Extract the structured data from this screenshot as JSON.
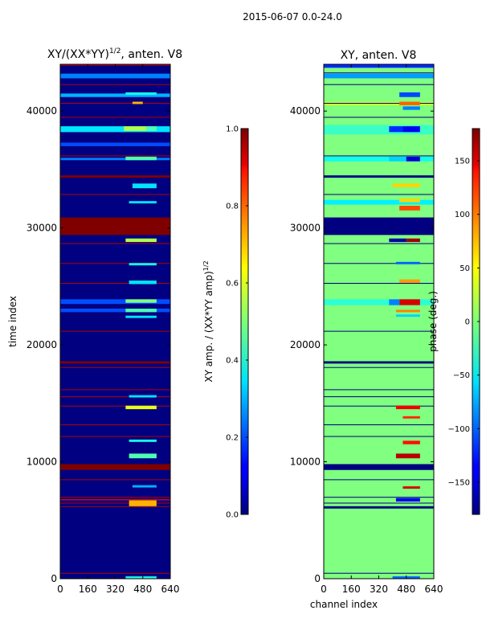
{
  "figure": {
    "suptitle": "2015-06-07 0.0-24.0"
  },
  "chart_data": [
    {
      "type": "heatmap",
      "title": "XY/(XX*YY)^{1/2}, anten. V8",
      "title_main": "XY/(XX*YY)",
      "title_exp": "1/2",
      "title_tail": ", anten. V8",
      "xlabel": "",
      "ylabel": "time index",
      "xlim": [
        0,
        640
      ],
      "ylim": [
        0,
        44000
      ],
      "xticks": [
        0,
        160,
        320,
        480,
        640
      ],
      "yticks": [
        0,
        10000,
        20000,
        30000,
        40000
      ],
      "base_value": 0.0,
      "bands": [
        {
          "y0": 29400,
          "y1": 30900,
          "value": 1.0
        },
        {
          "y0": 9300,
          "y1": 9800,
          "value": 1.0
        },
        {
          "y0": 18400,
          "y1": 18600,
          "value": 1.0
        },
        {
          "y0": 34300,
          "y1": 34500,
          "value": 1.0
        },
        {
          "y0": 6700,
          "y1": 6800,
          "value": 0.9
        },
        {
          "y0": 43900,
          "y1": 44000,
          "value": 0.9
        }
      ],
      "lines_y": [
        500,
        6200,
        6500,
        7000,
        8500,
        12200,
        13200,
        14800,
        15600,
        16200,
        18100,
        21200,
        25300,
        27000,
        28700,
        32900,
        36200,
        39500,
        40700,
        42300
      ],
      "row_values": [
        {
          "y0": 42800,
          "y1": 43200,
          "value": 0.25
        },
        {
          "y0": 41200,
          "y1": 41500,
          "value": 0.3
        },
        {
          "y0": 38200,
          "y1": 38700,
          "value": 0.35
        },
        {
          "y0": 37000,
          "y1": 37300,
          "value": 0.2
        },
        {
          "y0": 35800,
          "y1": 36000,
          "value": 0.25
        },
        {
          "y0": 23500,
          "y1": 23900,
          "value": 0.2
        },
        {
          "y0": 22800,
          "y1": 23100,
          "value": 0.2
        }
      ],
      "blocks": [
        {
          "x0": 370,
          "x1": 500,
          "y0": 38300,
          "y1": 38700,
          "value": 0.55
        },
        {
          "x0": 500,
          "x1": 560,
          "y0": 38300,
          "y1": 38700,
          "value": 0.45
        },
        {
          "x0": 380,
          "x1": 560,
          "y0": 41400,
          "y1": 41600,
          "value": 0.4
        },
        {
          "x0": 420,
          "x1": 480,
          "y0": 40600,
          "y1": 40800,
          "value": 0.7
        },
        {
          "x0": 380,
          "x1": 560,
          "y0": 35800,
          "y1": 36100,
          "value": 0.45
        },
        {
          "x0": 420,
          "x1": 560,
          "y0": 33400,
          "y1": 33800,
          "value": 0.35
        },
        {
          "x0": 400,
          "x1": 560,
          "y0": 32100,
          "y1": 32300,
          "value": 0.35
        },
        {
          "x0": 380,
          "x1": 560,
          "y0": 28800,
          "y1": 29100,
          "value": 0.55
        },
        {
          "x0": 400,
          "x1": 560,
          "y0": 26800,
          "y1": 27000,
          "value": 0.4
        },
        {
          "x0": 400,
          "x1": 560,
          "y0": 25200,
          "y1": 25500,
          "value": 0.35
        },
        {
          "x0": 380,
          "x1": 560,
          "y0": 23600,
          "y1": 23900,
          "value": 0.5
        },
        {
          "x0": 380,
          "x1": 560,
          "y0": 22800,
          "y1": 23100,
          "value": 0.45
        },
        {
          "x0": 380,
          "x1": 560,
          "y0": 22300,
          "y1": 22500,
          "value": 0.35
        },
        {
          "x0": 380,
          "x1": 560,
          "y0": 14500,
          "y1": 14800,
          "value": 0.6
        },
        {
          "x0": 400,
          "x1": 560,
          "y0": 15500,
          "y1": 15700,
          "value": 0.35
        },
        {
          "x0": 400,
          "x1": 560,
          "y0": 11700,
          "y1": 11900,
          "value": 0.4
        },
        {
          "x0": 400,
          "x1": 560,
          "y0": 10300,
          "y1": 10700,
          "value": 0.45
        },
        {
          "x0": 400,
          "x1": 560,
          "y0": 6200,
          "y1": 6700,
          "value": 0.7
        },
        {
          "x0": 420,
          "x1": 560,
          "y0": 7800,
          "y1": 8000,
          "value": 0.3
        },
        {
          "x0": 380,
          "x1": 560,
          "y0": 0,
          "y1": 200,
          "value": 0.4
        }
      ],
      "colorbar": {
        "label_main": "XY amp. / (XX*YY amp)",
        "label_exp": "1/2",
        "label": "XY amp. / (XX*YY amp)^{1/2}",
        "vmin": 0.0,
        "vmax": 1.0,
        "ticks": [
          0.0,
          0.2,
          0.4,
          0.6,
          0.8,
          1.0
        ],
        "tick_labels": [
          "0.0",
          "0.2",
          "0.4",
          "0.6",
          "0.8",
          "1.0"
        ]
      }
    },
    {
      "type": "heatmap",
      "title": "XY, anten. V8",
      "xlabel": "channel index",
      "ylabel": "",
      "xlim": [
        0,
        640
      ],
      "ylim": [
        0,
        44000
      ],
      "xticks": [
        0,
        160,
        320,
        480,
        640
      ],
      "yticks": [
        0,
        10000,
        20000,
        30000,
        40000
      ],
      "base_value": 0,
      "bands": [
        {
          "y0": 29400,
          "y1": 30900,
          "value": -180
        },
        {
          "y0": 9300,
          "y1": 9800,
          "value": -180
        },
        {
          "y0": 18400,
          "y1": 18600,
          "value": -180
        },
        {
          "y0": 34300,
          "y1": 34500,
          "value": -180
        },
        {
          "y0": 6000,
          "y1": 6200,
          "value": -180
        },
        {
          "y0": 43700,
          "y1": 44000,
          "value": -120
        }
      ],
      "lines_y": [
        500,
        6500,
        7000,
        8500,
        12200,
        13200,
        14800,
        15600,
        16200,
        18100,
        21200,
        25300,
        27000,
        28700,
        32900,
        36200,
        39500,
        40700,
        42300,
        43300
      ],
      "row_values": [
        {
          "y0": 42800,
          "y1": 43200,
          "value": -80
        },
        {
          "y0": 38000,
          "y1": 38800,
          "value": -25
        },
        {
          "y0": 35700,
          "y1": 36100,
          "value": -40
        },
        {
          "y0": 32000,
          "y1": 32400,
          "value": -50
        },
        {
          "y0": 23400,
          "y1": 23900,
          "value": -30
        },
        {
          "y0": 40500,
          "y1": 40800,
          "value": 30
        }
      ],
      "blocks": [
        {
          "x0": 380,
          "x1": 460,
          "y0": 38200,
          "y1": 38700,
          "value": -120
        },
        {
          "x0": 460,
          "x1": 560,
          "y0": 38200,
          "y1": 38700,
          "value": -140
        },
        {
          "x0": 440,
          "x1": 560,
          "y0": 41200,
          "y1": 41600,
          "value": -110
        },
        {
          "x0": 440,
          "x1": 560,
          "y0": 40500,
          "y1": 40800,
          "value": 100
        },
        {
          "x0": 460,
          "x1": 560,
          "y0": 40100,
          "y1": 40400,
          "value": -90
        },
        {
          "x0": 380,
          "x1": 480,
          "y0": 35700,
          "y1": 36100,
          "value": -60
        },
        {
          "x0": 480,
          "x1": 560,
          "y0": 35700,
          "y1": 36100,
          "value": -150
        },
        {
          "x0": 400,
          "x1": 560,
          "y0": 33500,
          "y1": 33800,
          "value": 60
        },
        {
          "x0": 440,
          "x1": 560,
          "y0": 31500,
          "y1": 31900,
          "value": 110
        },
        {
          "x0": 440,
          "x1": 560,
          "y0": 32200,
          "y1": 32500,
          "value": 60
        },
        {
          "x0": 480,
          "x1": 560,
          "y0": 28800,
          "y1": 29100,
          "value": 170
        },
        {
          "x0": 380,
          "x1": 480,
          "y0": 28800,
          "y1": 29100,
          "value": -170
        },
        {
          "x0": 420,
          "x1": 560,
          "y0": 26900,
          "y1": 27100,
          "value": -100
        },
        {
          "x0": 440,
          "x1": 560,
          "y0": 25300,
          "y1": 25600,
          "value": 80
        },
        {
          "x0": 440,
          "x1": 560,
          "y0": 23400,
          "y1": 23900,
          "value": 150
        },
        {
          "x0": 380,
          "x1": 440,
          "y0": 23400,
          "y1": 23900,
          "value": -90
        },
        {
          "x0": 420,
          "x1": 560,
          "y0": 22800,
          "y1": 23000,
          "value": 90
        },
        {
          "x0": 420,
          "x1": 560,
          "y0": 22400,
          "y1": 22600,
          "value": -60
        },
        {
          "x0": 420,
          "x1": 560,
          "y0": 14500,
          "y1": 14800,
          "value": 140
        },
        {
          "x0": 460,
          "x1": 560,
          "y0": 13700,
          "y1": 13900,
          "value": 120
        },
        {
          "x0": 460,
          "x1": 560,
          "y0": 11500,
          "y1": 11800,
          "value": 130
        },
        {
          "x0": 420,
          "x1": 560,
          "y0": 10300,
          "y1": 10700,
          "value": 160
        },
        {
          "x0": 420,
          "x1": 560,
          "y0": 6600,
          "y1": 6900,
          "value": -140
        },
        {
          "x0": 460,
          "x1": 560,
          "y0": 7700,
          "y1": 7900,
          "value": 150
        },
        {
          "x0": 400,
          "x1": 560,
          "y0": 0,
          "y1": 200,
          "value": -100
        }
      ],
      "colorbar": {
        "label": "phase (deg.)",
        "vmin": -180,
        "vmax": 180,
        "ticks": [
          -150,
          -100,
          -50,
          0,
          50,
          100,
          150
        ],
        "tick_labels": [
          "−150",
          "−100",
          "−50",
          "0",
          "50",
          "100",
          "150"
        ]
      }
    }
  ]
}
